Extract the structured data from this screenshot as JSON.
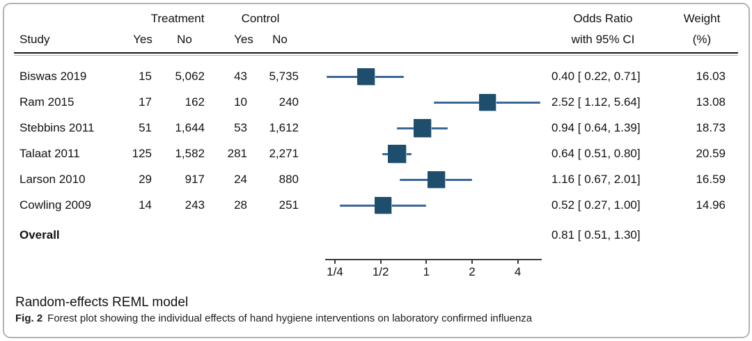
{
  "table": {
    "group_treatment": "Treatment",
    "group_control": "Control",
    "study_header": "Study",
    "sub_headers": [
      "Yes",
      "No",
      "Yes",
      "No"
    ],
    "or_header_line1": "Odds Ratio",
    "or_header_line2": "with 95% CI",
    "weight_header_line1": "Weight",
    "weight_header_line2": "(%)"
  },
  "chart_data": {
    "type": "forest",
    "x_scale": "log2",
    "axis_tick_labels": [
      "1/4",
      "1/2",
      "1",
      "2",
      "4"
    ],
    "axis_tick_values": [
      0.25,
      0.5,
      1,
      2,
      4
    ],
    "axis_range": [
      0.216,
      5.75
    ],
    "studies": [
      {
        "study": "Biswas 2019",
        "t_yes": "15",
        "t_no": "5,062",
        "c_yes": "43",
        "c_no": "5,735",
        "or": 0.4,
        "ci_low": 0.22,
        "ci_high": 0.71,
        "or_label": "0.40 [ 0.22,  0.71]",
        "weight": 16.03,
        "weight_label": "16.03"
      },
      {
        "study": "Ram 2015",
        "t_yes": "17",
        "t_no": "162",
        "c_yes": "10",
        "c_no": "240",
        "or": 2.52,
        "ci_low": 1.12,
        "ci_high": 5.64,
        "or_label": "2.52 [ 1.12,  5.64]",
        "weight": 13.08,
        "weight_label": "13.08"
      },
      {
        "study": "Stebbins 2011",
        "t_yes": "51",
        "t_no": "1,644",
        "c_yes": "53",
        "c_no": "1,612",
        "or": 0.94,
        "ci_low": 0.64,
        "ci_high": 1.39,
        "or_label": "0.94 [ 0.64,  1.39]",
        "weight": 18.73,
        "weight_label": "18.73"
      },
      {
        "study": "Talaat 2011",
        "t_yes": "125",
        "t_no": "1,582",
        "c_yes": "281",
        "c_no": "2,271",
        "or": 0.64,
        "ci_low": 0.51,
        "ci_high": 0.8,
        "or_label": "0.64 [ 0.51,  0.80]",
        "weight": 20.59,
        "weight_label": "20.59"
      },
      {
        "study": "Larson 2010",
        "t_yes": "29",
        "t_no": "917",
        "c_yes": "24",
        "c_no": "880",
        "or": 1.16,
        "ci_low": 0.67,
        "ci_high": 2.01,
        "or_label": "1.16 [ 0.67,  2.01]",
        "weight": 16.59,
        "weight_label": "16.59"
      },
      {
        "study": "Cowling 2009",
        "t_yes": "14",
        "t_no": "243",
        "c_yes": "28",
        "c_no": "251",
        "or": 0.52,
        "ci_low": 0.27,
        "ci_high": 1.0,
        "or_label": "0.52 [ 0.27,  1.00]",
        "weight": 14.96,
        "weight_label": "14.96"
      }
    ],
    "overall": {
      "label": "Overall",
      "or": 0.81,
      "ci_low": 0.51,
      "ci_high": 1.3,
      "or_label": "0.81 [ 0.51,  1.30]"
    }
  },
  "footer": {
    "model_note": "Random-effects REML model",
    "caption_label": "Fig. 2",
    "caption_text": "Forest plot showing the individual effects of hand hygiene interventions on laboratory confirmed influenza"
  },
  "colors": {
    "marker": "#1f4e6d",
    "ci_line": "#3a6795",
    "axis": "#3a3a3a",
    "text": "#111111"
  }
}
